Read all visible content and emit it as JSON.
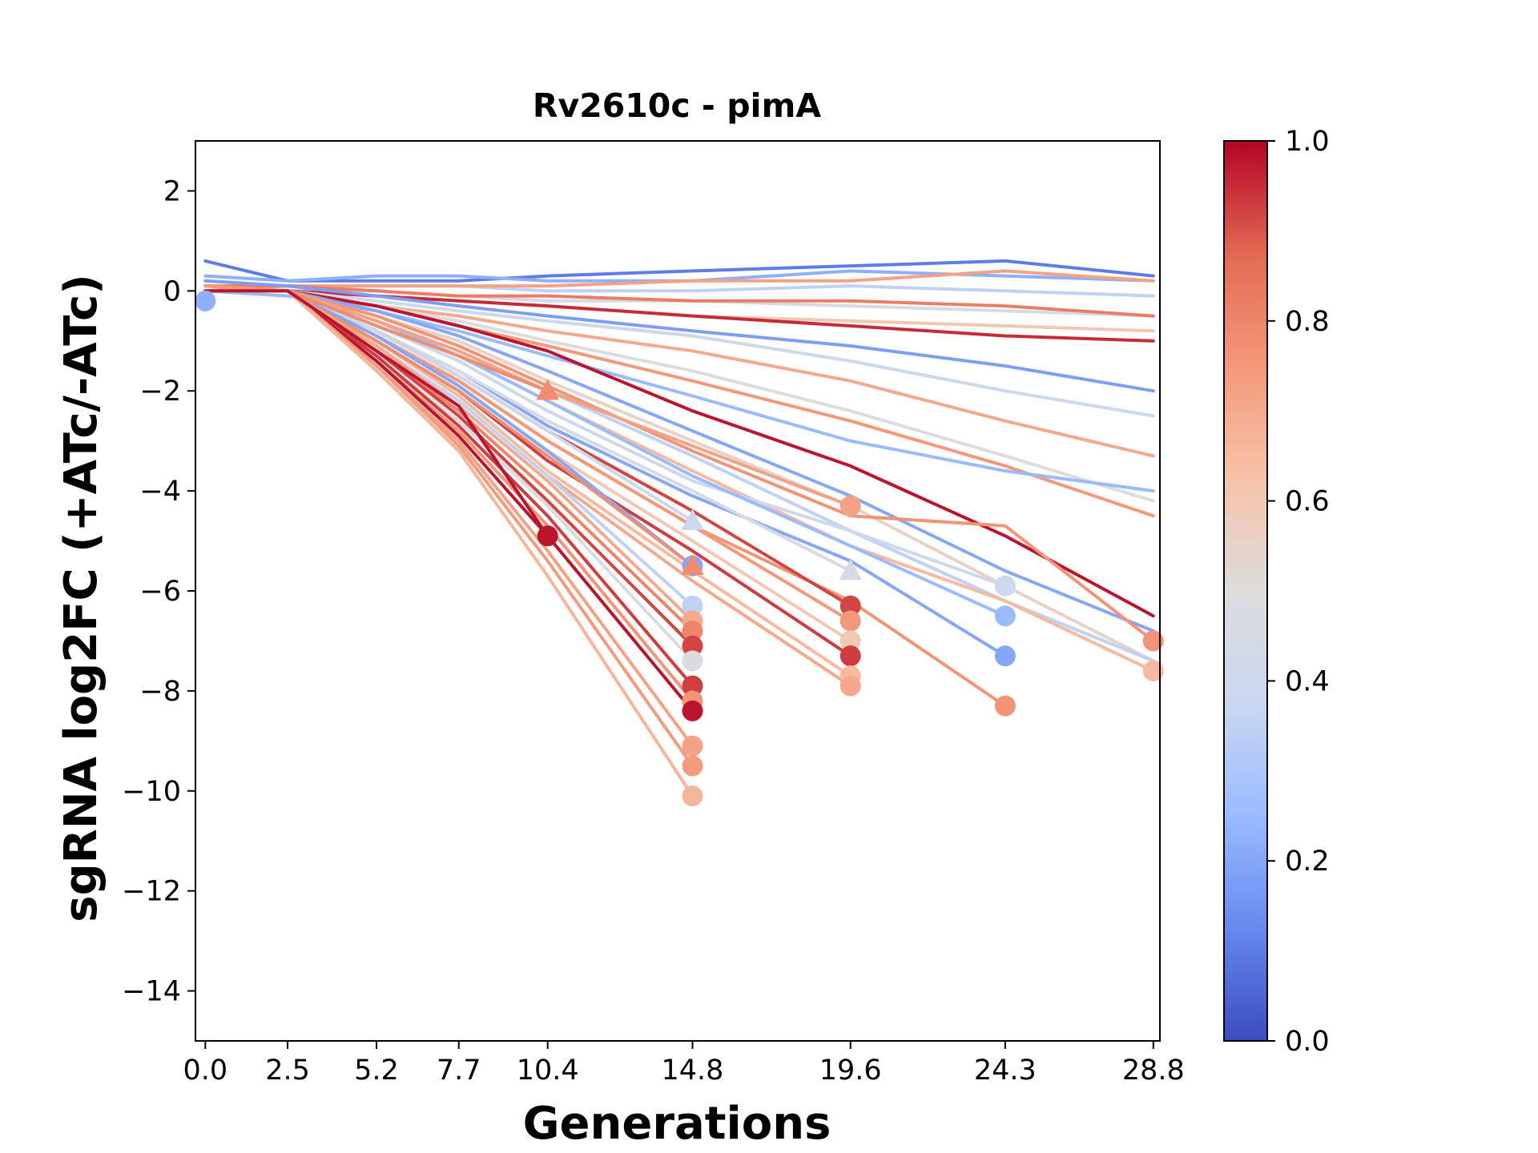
{
  "chart_data": {
    "type": "line",
    "title": "Rv2610c - pimA",
    "xlabel": "Generations",
    "ylabel": "sgRNA log2FC (+ATc/-ATc)",
    "x_ticks": [
      0.0,
      2.5,
      5.2,
      7.7,
      10.4,
      14.8,
      19.6,
      24.3,
      28.8
    ],
    "x_tick_labels": [
      "0.0",
      "2.5",
      "5.2",
      "7.7",
      "10.4",
      "14.8",
      "19.6",
      "24.3",
      "28.8"
    ],
    "xlim": [
      -0.3,
      29.0
    ],
    "y_ticks": [
      2,
      0,
      -2,
      -4,
      -6,
      -8,
      -10,
      -12,
      -14
    ],
    "y_tick_labels": [
      "2",
      "0",
      "−2",
      "−4",
      "−6",
      "−8",
      "−10",
      "−12",
      "−14"
    ],
    "ylim": [
      -15,
      3
    ],
    "grid": false,
    "colorbar": {
      "colormap": "coolwarm",
      "range": [
        0,
        1
      ],
      "ticks": [
        0.0,
        0.2,
        0.4,
        0.6,
        0.8,
        1.0
      ],
      "tick_labels": [
        "0.0",
        "0.2",
        "0.4",
        "0.6",
        "0.8",
        "1.0"
      ],
      "stops": [
        "#3b4cc0",
        "#6788ee",
        "#9abbff",
        "#c9d7f0",
        "#dddcdc",
        "#f6c3a8",
        "#f4987a",
        "#e26952",
        "#b40426"
      ]
    },
    "series": [
      {
        "c": 0.1,
        "x": [
          0,
          2.5,
          5.2,
          7.7,
          10.4,
          14.8,
          19.6,
          24.3,
          28.8
        ],
        "y": [
          0.6,
          0.2,
          0.2,
          0.2,
          0.3,
          0.4,
          0.5,
          0.6,
          0.3
        ]
      },
      {
        "c": 0.22,
        "x": [
          0,
          2.5,
          5.2,
          7.7,
          10.4,
          14.8,
          19.6,
          24.3,
          28.8
        ],
        "y": [
          0.3,
          0.2,
          0.3,
          0.3,
          0.2,
          0.2,
          0.4,
          0.3,
          0.2
        ]
      },
      {
        "c": 0.35,
        "x": [
          0,
          2.5,
          5.2,
          7.7,
          10.4,
          14.8,
          19.6,
          24.3,
          28.8
        ],
        "y": [
          0.2,
          0.1,
          0.1,
          0.1,
          0.0,
          0.0,
          0.1,
          0.0,
          -0.1
        ]
      },
      {
        "c": 0.45,
        "x": [
          0,
          2.5,
          5.2,
          7.7,
          10.4,
          14.8,
          19.6,
          24.3,
          28.8
        ],
        "y": [
          0.1,
          0.0,
          0.0,
          -0.1,
          -0.2,
          -0.2,
          -0.3,
          -0.4,
          -0.5
        ]
      },
      {
        "c": 0.72,
        "x": [
          0,
          2.5,
          5.2,
          7.7,
          10.4,
          14.8,
          19.6,
          24.3,
          28.8
        ],
        "y": [
          0.0,
          0.1,
          0.1,
          0.1,
          0.1,
          0.2,
          0.2,
          0.4,
          0.2
        ]
      },
      {
        "c": 0.6,
        "x": [
          0,
          2.5,
          5.2,
          7.7,
          10.4,
          14.8,
          19.6,
          24.3,
          28.8
        ],
        "y": [
          0.0,
          0.0,
          -0.1,
          -0.2,
          -0.3,
          -0.5,
          -0.6,
          -0.7,
          -0.8
        ]
      },
      {
        "c": 0.82,
        "x": [
          0,
          2.5,
          5.2,
          7.7,
          10.4,
          14.8,
          19.6,
          24.3,
          28.8
        ],
        "y": [
          0.1,
          0.1,
          0.0,
          -0.1,
          -0.1,
          -0.2,
          -0.2,
          -0.3,
          -0.5
        ]
      },
      {
        "c": 0.95,
        "x": [
          0,
          2.5,
          5.2,
          7.7,
          10.4,
          14.8,
          19.6,
          24.3,
          28.8
        ],
        "y": [
          0.1,
          0.0,
          -0.1,
          -0.2,
          -0.3,
          -0.5,
          -0.7,
          -0.9,
          -1.0
        ]
      },
      {
        "c": 0.18,
        "x": [
          0,
          2.5,
          5.2,
          7.7,
          10.4,
          14.8,
          19.6,
          24.3,
          28.8
        ],
        "y": [
          0.2,
          0.1,
          -0.1,
          -0.3,
          -0.5,
          -0.8,
          -1.1,
          -1.5,
          -2.0
        ]
      },
      {
        "c": 0.4,
        "x": [
          0,
          2.5,
          5.2,
          7.7,
          10.4,
          14.8,
          19.6,
          24.3,
          28.8
        ],
        "y": [
          0.1,
          0.0,
          -0.2,
          -0.4,
          -0.6,
          -0.9,
          -1.4,
          -2.0,
          -2.5
        ]
      },
      {
        "c": 0.7,
        "x": [
          0,
          2.5,
          5.2,
          7.7,
          10.4,
          14.8,
          19.6,
          24.3,
          28.8
        ],
        "y": [
          0.0,
          -0.1,
          -0.3,
          -0.5,
          -0.8,
          -1.2,
          -1.8,
          -2.6,
          -3.3
        ]
      },
      {
        "c": 0.5,
        "x": [
          0,
          2.5,
          5.2,
          7.7,
          10.4,
          14.8,
          19.6,
          24.3,
          28.8
        ],
        "y": [
          0.0,
          0.0,
          -0.3,
          -0.6,
          -1.0,
          -1.6,
          -2.4,
          -3.3,
          -4.2
        ]
      },
      {
        "c": 0.75,
        "x": [
          0,
          2.5,
          5.2,
          7.7,
          10.4,
          14.8,
          19.6,
          24.3,
          28.8
        ],
        "y": [
          0.1,
          0.0,
          -0.3,
          -0.7,
          -1.1,
          -1.8,
          -2.6,
          -3.5,
          -4.5
        ]
      },
      {
        "c": 0.25,
        "x": [
          0,
          2.5,
          5.2,
          7.7,
          10.4,
          14.8,
          19.6,
          24.3,
          28.8
        ],
        "y": [
          0.0,
          -0.1,
          -0.4,
          -0.8,
          -1.3,
          -2.1,
          -3.0,
          -3.6,
          -4.0
        ]
      },
      {
        "c": 0.98,
        "x": [
          0,
          2.5,
          5.2,
          7.7,
          10.4,
          14.8,
          19.6,
          24.3,
          28.8
        ],
        "y": [
          0.0,
          0.0,
          -0.3,
          -0.7,
          -1.2,
          -2.4,
          -3.5,
          -4.9,
          -6.5
        ]
      },
      {
        "c": 0.2,
        "x": [
          0,
          2.5,
          5.2,
          7.7,
          10.4,
          14.8,
          19.6,
          24.3,
          28.8
        ],
        "y": [
          0.0,
          0.0,
          -0.4,
          -0.9,
          -1.6,
          -2.8,
          -4.1,
          -5.6,
          -6.8
        ]
      },
      {
        "c": 0.55,
        "x": [
          0,
          2.5,
          5.2,
          7.7,
          10.4,
          14.8,
          19.6,
          24.3,
          28.8
        ],
        "y": [
          0.0,
          0.0,
          -0.5,
          -1.0,
          -1.8,
          -3.0,
          -4.3,
          -5.9,
          -7.4
        ]
      },
      {
        "c": 0.76,
        "x": [
          0,
          2.5,
          5.2,
          7.7,
          10.4,
          14.8,
          19.6,
          24.3,
          28.8
        ],
        "y": [
          0.0,
          0.0,
          -0.5,
          -1.1,
          -1.9,
          -3.2,
          -4.5,
          -4.7,
          -7.0
        ],
        "end_marker": "circle"
      },
      {
        "c": 0.35,
        "x": [
          0,
          2.5,
          5.2,
          7.7,
          10.4,
          14.8,
          19.6,
          24.3,
          28.8
        ],
        "y": [
          0.0,
          0.0,
          -0.6,
          -1.2,
          -2.0,
          -3.3,
          -4.8,
          -6.2,
          -7.4
        ]
      },
      {
        "c": 0.65,
        "x": [
          0,
          2.5,
          5.2,
          7.7,
          10.4,
          14.8,
          19.6,
          24.3,
          28.8
        ],
        "y": [
          0.0,
          0.0,
          -0.6,
          -1.3,
          -2.2,
          -3.6,
          -5.1,
          -6.2,
          -7.6
        ],
        "end_marker": "circle"
      },
      {
        "c": 0.4,
        "x": [
          0,
          2.5,
          5.2,
          7.7,
          10.4,
          14.8,
          19.6,
          24.3
        ],
        "y": [
          0.0,
          0.0,
          -0.7,
          -1.4,
          -2.4,
          -3.8,
          -4.8,
          -5.9
        ],
        "end_marker": "circle"
      },
      {
        "c": 0.25,
        "x": [
          0,
          2.5,
          5.2,
          7.7,
          10.4,
          14.8,
          19.6,
          24.3
        ],
        "y": [
          0.0,
          0.0,
          -0.6,
          -1.3,
          -2.2,
          -3.7,
          -5.1,
          -6.5
        ],
        "end_marker": "circle"
      },
      {
        "c": 0.2,
        "x": [
          0,
          2.5,
          5.2,
          7.7,
          10.4,
          14.8,
          19.6,
          24.3
        ],
        "y": [
          0.0,
          0.0,
          -0.8,
          -1.6,
          -2.7,
          -4.1,
          -5.4,
          -7.3
        ],
        "end_marker": "circle"
      },
      {
        "c": 0.76,
        "x": [
          0,
          2.5,
          5.2,
          7.7,
          10.4,
          14.8,
          19.6,
          24.3
        ],
        "y": [
          0.0,
          0.0,
          -0.9,
          -1.8,
          -3.0,
          -4.7,
          -6.2,
          -8.3
        ],
        "end_marker": "circle"
      },
      {
        "c": 0.72,
        "x": [
          0,
          2.5,
          5.2,
          7.7,
          10.4,
          14.8,
          19.6
        ],
        "y": [
          0.0,
          0.0,
          -0.6,
          -1.2,
          -2.0,
          -3.1,
          -4.3
        ],
        "end_marker": "circle"
      },
      {
        "c": 0.45,
        "x": [
          0,
          2.5,
          5.2,
          7.7,
          10.4,
          14.8,
          19.6
        ],
        "y": [
          0.0,
          0.0,
          -0.8,
          -1.6,
          -2.6,
          -4.0,
          -5.6
        ],
        "end_marker": "triangle"
      },
      {
        "c": 0.92,
        "x": [
          0,
          2.5,
          5.2,
          7.7,
          10.4,
          14.8,
          19.6
        ],
        "y": [
          0.0,
          0.0,
          -0.8,
          -1.7,
          -2.8,
          -4.4,
          -6.3
        ],
        "end_marker": "circle"
      },
      {
        "c": 0.75,
        "x": [
          0,
          2.5,
          5.2,
          7.7,
          10.4,
          14.8,
          19.6
        ],
        "y": [
          0.0,
          0.0,
          -0.9,
          -1.8,
          -3.0,
          -4.7,
          -6.6
        ],
        "end_marker": "circle"
      },
      {
        "c": 0.6,
        "x": [
          0,
          2.5,
          5.2,
          7.7,
          10.4,
          14.8,
          19.6
        ],
        "y": [
          0.0,
          0.0,
          -0.9,
          -1.9,
          -3.2,
          -5.0,
          -7.0
        ],
        "end_marker": "circle"
      },
      {
        "c": 0.93,
        "x": [
          0,
          2.5,
          5.2,
          7.7,
          10.4,
          14.8,
          19.6
        ],
        "y": [
          0.0,
          0.0,
          -1.0,
          -2.0,
          -3.4,
          -5.2,
          -7.3
        ],
        "end_marker": "circle"
      },
      {
        "c": 0.65,
        "x": [
          0,
          2.5,
          5.2,
          7.7,
          10.4,
          14.8,
          19.6
        ],
        "y": [
          0.0,
          0.0,
          -1.0,
          -2.1,
          -3.6,
          -5.6,
          -7.7
        ],
        "end_marker": "circle"
      },
      {
        "c": 0.7,
        "x": [
          0,
          2.5,
          5.2,
          7.7,
          10.4,
          14.8,
          19.6
        ],
        "y": [
          0.0,
          0.0,
          -1.1,
          -2.2,
          -3.7,
          -5.8,
          -7.9
        ],
        "end_marker": "circle"
      },
      {
        "c": 0.4,
        "x": [
          0,
          2.5,
          5.2,
          7.7,
          10.4,
          14.8
        ],
        "y": [
          0.0,
          0.0,
          -0.8,
          -1.7,
          -2.8,
          -4.6
        ],
        "end_marker": "triangle"
      },
      {
        "c": 0.2,
        "x": [
          0,
          2.5,
          5.2,
          7.7,
          10.4,
          14.8
        ],
        "y": [
          0.0,
          0.0,
          -0.9,
          -1.9,
          -3.2,
          -5.5
        ],
        "end_marker": "circle"
      },
      {
        "c": 0.78,
        "x": [
          0,
          2.5,
          5.2,
          7.7,
          10.4,
          14.8
        ],
        "y": [
          0.0,
          0.0,
          -1.0,
          -2.0,
          -3.3,
          -5.5
        ],
        "end_marker": "triangle"
      },
      {
        "c": 0.35,
        "x": [
          0,
          2.5,
          5.2,
          7.7,
          10.4,
          14.8
        ],
        "y": [
          0.0,
          0.0,
          -1.1,
          -2.2,
          -3.7,
          -6.3
        ],
        "end_marker": "circle"
      },
      {
        "c": 0.7,
        "x": [
          0,
          2.5,
          5.2,
          7.7,
          10.4,
          14.8
        ],
        "y": [
          0.0,
          0.0,
          -1.1,
          -2.3,
          -3.8,
          -6.6
        ],
        "end_marker": "circle"
      },
      {
        "c": 0.8,
        "x": [
          0,
          2.5,
          5.2,
          7.7,
          10.4,
          14.8
        ],
        "y": [
          0.0,
          0.0,
          -1.2,
          -2.4,
          -4.0,
          -6.8
        ],
        "end_marker": "circle"
      },
      {
        "c": 0.92,
        "x": [
          0,
          2.5,
          5.2,
          7.7,
          10.4,
          14.8
        ],
        "y": [
          0.0,
          0.0,
          -1.2,
          -2.5,
          -4.2,
          -7.1
        ],
        "end_marker": "circle"
      },
      {
        "c": 0.48,
        "x": [
          0,
          2.5,
          5.2,
          7.7,
          10.4,
          14.8
        ],
        "y": [
          0.0,
          0.0,
          -1.3,
          -2.6,
          -4.3,
          -7.4
        ],
        "end_marker": "circle"
      },
      {
        "c": 0.93,
        "x": [
          0,
          2.5,
          5.2,
          7.7,
          10.4,
          14.8
        ],
        "y": [
          0.0,
          0.0,
          -1.3,
          -2.7,
          -4.5,
          -7.9
        ],
        "end_marker": "circle"
      },
      {
        "c": 0.76,
        "x": [
          0,
          2.5,
          5.2,
          7.7,
          10.4,
          14.8
        ],
        "y": [
          0.0,
          0.0,
          -1.4,
          -2.8,
          -4.7,
          -8.2
        ],
        "end_marker": "circle"
      },
      {
        "c": 0.98,
        "x": [
          0,
          2.5,
          5.2,
          7.7,
          10.4,
          14.8
        ],
        "y": [
          0.0,
          0.0,
          -1.4,
          -2.9,
          -4.9,
          -8.4
        ],
        "end_marker": "circle"
      },
      {
        "c": 0.72,
        "x": [
          0,
          2.5,
          5.2,
          7.7,
          10.4,
          14.8
        ],
        "y": [
          0.0,
          0.0,
          -1.5,
          -3.0,
          -5.2,
          -9.1
        ],
        "end_marker": "circle"
      },
      {
        "c": 0.74,
        "x": [
          0,
          2.5,
          5.2,
          7.7,
          10.4,
          14.8
        ],
        "y": [
          0.0,
          0.0,
          -1.5,
          -3.1,
          -5.4,
          -9.5
        ],
        "end_marker": "circle"
      },
      {
        "c": 0.66,
        "x": [
          0,
          2.5,
          5.2,
          7.7,
          10.4,
          14.8
        ],
        "y": [
          0.0,
          0.0,
          -1.6,
          -3.2,
          -5.7,
          -10.1
        ],
        "end_marker": "circle"
      },
      {
        "c": 0.78,
        "x": [
          0,
          2.5,
          5.2,
          7.7,
          10.4
        ],
        "y": [
          0.0,
          0.0,
          -0.7,
          -1.3,
          -2.0
        ],
        "end_marker": "triangle"
      },
      {
        "c": 0.98,
        "x": [
          0,
          2.5,
          5.2,
          7.7,
          10.4
        ],
        "y": [
          0.0,
          0.0,
          -1.2,
          -2.3,
          -4.9
        ],
        "end_marker": "circle"
      },
      {
        "c": 0.22,
        "x": [
          0
        ],
        "y": [
          -0.2
        ],
        "end_marker": "circle"
      }
    ]
  }
}
